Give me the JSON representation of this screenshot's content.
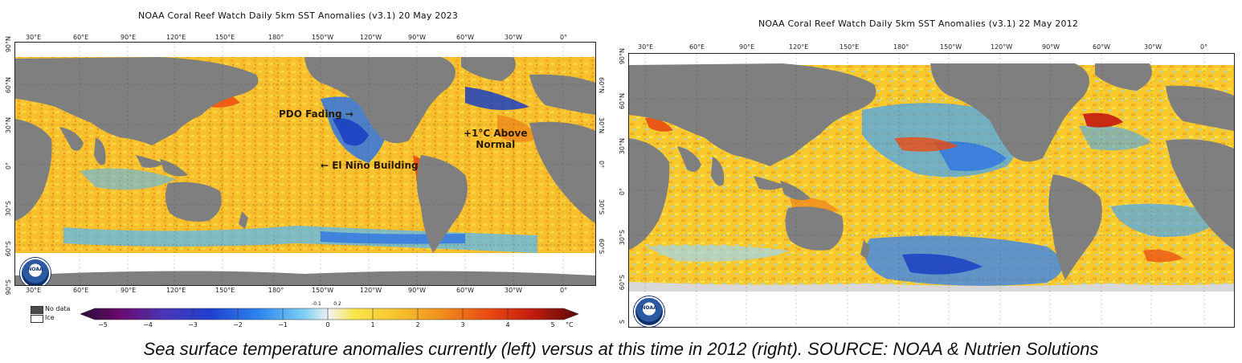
{
  "left_map": {
    "title": "NOAA Coral Reef Watch Daily 5km SST Anomalies  (v3.1)   20 May 2023",
    "lon_ticks": [
      "30°E",
      "60°E",
      "90°E",
      "120°E",
      "150°E",
      "180°",
      "150°W",
      "120°W",
      "90°W",
      "60°W",
      "30°W",
      "0°"
    ],
    "lat_ticks_left": [
      "90°N",
      "60°N",
      "30°N",
      "0°",
      "30°S",
      "60°S",
      "90°S"
    ],
    "lat_ticks_right": [
      "60°N",
      "30°N",
      "0°",
      "30°S",
      "60°S"
    ],
    "annotations": {
      "pdo": "PDO Fading →",
      "nino": "← El Niño Building",
      "above_line1": "+1°C Above",
      "above_line2": "Normal"
    },
    "logo_text": "NOAA"
  },
  "right_map": {
    "title": "NOAA Coral Reef Watch Daily 5km SST Anomalies  (v3.1)   22 May 2012",
    "lon_ticks": [
      "30°E",
      "60°E",
      "90°E",
      "120°E",
      "150°E",
      "180°",
      "150°W",
      "120°W",
      "90°W",
      "60°W",
      "30°W",
      "0°"
    ],
    "lat_ticks": [
      "90°N",
      "60°N",
      "30°N",
      "0°",
      "30°S",
      "60°S",
      "S"
    ],
    "logo_text": "NOAA"
  },
  "legend": {
    "no_data": "No data",
    "ice": "Ice",
    "colorbar_ticks": [
      "−5",
      "−4",
      "−3",
      "−2",
      "−1",
      "0",
      "1",
      "2",
      "3",
      "4",
      "5"
    ],
    "small_ticks": [
      "-0.1",
      "0.2"
    ],
    "unit": "°C",
    "colors": {
      "land": "#7f7f7f",
      "ice": "#ffffff",
      "neutral": "#f2f2f2",
      "cold_deep": "#3a0d4a",
      "cold": "#1f4fd6",
      "cool": "#4fb3f0",
      "warm": "#f7c727",
      "hot": "#ee4b12",
      "hot_deep": "#6b0c08"
    }
  },
  "caption": "Sea surface temperature anomalies currently (left) versus at this time in 2012 (right). SOURCE: NOAA & Nutrien Solutions"
}
